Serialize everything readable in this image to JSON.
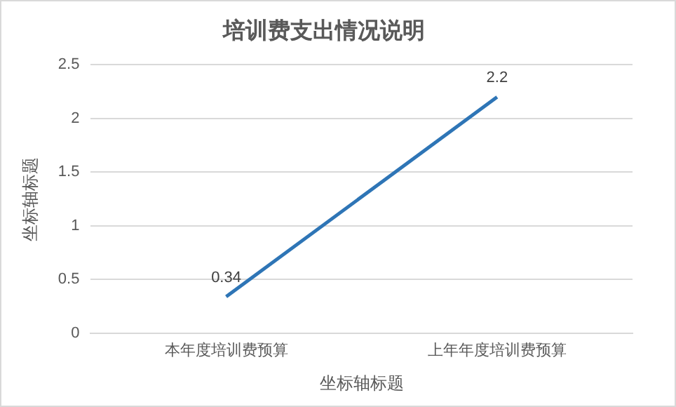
{
  "chart_data": {
    "type": "line",
    "title": "培训费支出情况说明",
    "xlabel": "坐标轴标题",
    "ylabel": "坐标轴标题",
    "categories": [
      "本年度培训费预算",
      "上年年度培训费预算"
    ],
    "values": [
      0.34,
      2.2
    ],
    "color": "#2e75b6",
    "ylim": [
      0,
      2.5
    ],
    "yticks": [
      0,
      0.5,
      1,
      1.5,
      2,
      2.5
    ],
    "grid": "y",
    "data_labels": true,
    "marker": "none",
    "line_style": "solid",
    "legend": false
  }
}
